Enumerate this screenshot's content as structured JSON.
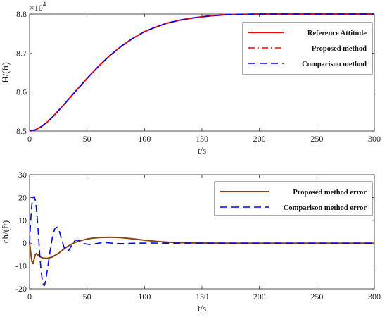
{
  "figure_title": "",
  "chart_data": [
    {
      "type": "line",
      "title": "",
      "xlabel": "t/s",
      "ylabel": "H/(ft)",
      "multiplier_label": "×10",
      "multiplier_exp": "4",
      "xlim": [
        0,
        300
      ],
      "ylim": [
        8.5,
        8.8
      ],
      "xticks": [
        0,
        50,
        100,
        150,
        200,
        250,
        300
      ],
      "yticks": [
        8.5,
        8.6,
        8.7,
        8.8
      ],
      "ytick_labels": [
        "8.5",
        "8.6",
        "8.7",
        "8.8"
      ],
      "grid": false,
      "legend_position": "top-right",
      "series": [
        {
          "name": "Reference Attitude",
          "color": "#ff0000",
          "style": "solid",
          "x": [
            0,
            5,
            10,
            15,
            20,
            30,
            40,
            50,
            60,
            70,
            80,
            90,
            100,
            110,
            120,
            130,
            140,
            150,
            160,
            170,
            180,
            190,
            200,
            220,
            250,
            300
          ],
          "y": [
            8.5,
            8.503,
            8.511,
            8.522,
            8.536,
            8.568,
            8.602,
            8.635,
            8.666,
            8.694,
            8.718,
            8.738,
            8.755,
            8.767,
            8.777,
            8.784,
            8.789,
            8.793,
            8.796,
            8.798,
            8.799,
            8.7995,
            8.8,
            8.8,
            8.8,
            8.8
          ]
        },
        {
          "name": "Proposed method",
          "color": "#ff0000",
          "style": "dashdot",
          "x": [
            0,
            5,
            10,
            15,
            20,
            30,
            40,
            50,
            60,
            70,
            80,
            90,
            100,
            110,
            120,
            130,
            140,
            150,
            160,
            170,
            180,
            190,
            200,
            220,
            250,
            300
          ],
          "y": [
            8.5,
            8.503,
            8.511,
            8.522,
            8.536,
            8.568,
            8.602,
            8.635,
            8.666,
            8.694,
            8.718,
            8.738,
            8.755,
            8.767,
            8.777,
            8.784,
            8.789,
            8.793,
            8.796,
            8.798,
            8.799,
            8.7995,
            8.8,
            8.8,
            8.8,
            8.8
          ]
        },
        {
          "name": "Comparison method",
          "color": "#0000ff",
          "style": "dashed",
          "x": [
            0,
            5,
            10,
            15,
            20,
            30,
            40,
            50,
            60,
            70,
            80,
            90,
            100,
            110,
            120,
            130,
            140,
            150,
            160,
            170,
            180,
            190,
            200,
            220,
            250,
            300
          ],
          "y": [
            8.5,
            8.503,
            8.511,
            8.522,
            8.536,
            8.568,
            8.602,
            8.635,
            8.666,
            8.694,
            8.718,
            8.738,
            8.755,
            8.767,
            8.777,
            8.784,
            8.789,
            8.793,
            8.796,
            8.798,
            8.799,
            8.7995,
            8.8,
            8.8,
            8.8,
            8.8
          ]
        }
      ]
    },
    {
      "type": "line",
      "title": "",
      "xlabel": "t/s",
      "ylabel": "eh/(ft)",
      "xlim": [
        0,
        300
      ],
      "ylim": [
        -20,
        30
      ],
      "xticks": [
        0,
        50,
        100,
        150,
        200,
        250,
        300
      ],
      "yticks": [
        -20,
        -10,
        0,
        10,
        20,
        30
      ],
      "ytick_labels": [
        "-20",
        "-10",
        "0",
        "10",
        "20",
        "30"
      ],
      "grid": false,
      "legend_position": "top-right",
      "series": [
        {
          "name": "Proposed method error",
          "color": "#8b4513",
          "style": "solid",
          "x": [
            0,
            1,
            2,
            3,
            4,
            5,
            6,
            8,
            10,
            13,
            16,
            20,
            25,
            30,
            35,
            40,
            45,
            50,
            55,
            60,
            65,
            70,
            75,
            80,
            90,
            100,
            110,
            120,
            130,
            140,
            150,
            160,
            180,
            200,
            250,
            300
          ],
          "y": [
            0,
            -4,
            -8,
            -9,
            -7,
            -5,
            -4.5,
            -5.5,
            -6.2,
            -6.6,
            -6.6,
            -6,
            -4.5,
            -2.5,
            -0.8,
            0.4,
            1.2,
            1.8,
            2.2,
            2.45,
            2.55,
            2.6,
            2.55,
            2.4,
            1.9,
            1.3,
            0.8,
            0.45,
            0.25,
            0.12,
            0.05,
            0.02,
            0,
            0,
            0,
            0
          ]
        },
        {
          "name": "Comparison method error",
          "color": "#0000ff",
          "style": "dashed",
          "x": [
            0,
            1,
            2,
            3,
            4,
            5,
            6,
            7,
            8,
            9,
            10,
            11,
            12,
            13,
            14,
            16,
            18,
            20,
            22,
            24,
            26,
            28,
            30,
            32,
            34,
            36,
            38,
            40,
            42,
            45,
            48,
            52,
            56,
            60,
            65,
            70,
            75,
            80,
            90,
            100,
            120,
            140,
            160,
            200,
            300
          ],
          "y": [
            0,
            10,
            17,
            20,
            20.5,
            19,
            15,
            9,
            1.5,
            -6,
            -12,
            -16,
            -18.2,
            -18.5,
            -16.5,
            -10,
            -3,
            3,
            6.5,
            7,
            5,
            1.5,
            -1.8,
            -3.5,
            -3.2,
            -1.5,
            0.3,
            1.3,
            1.4,
            0.6,
            -0.2,
            -0.6,
            -0.4,
            0,
            0.3,
            0.1,
            -0.15,
            -0.2,
            -0.05,
            0.05,
            0,
            0,
            0,
            0,
            0
          ]
        }
      ]
    }
  ]
}
